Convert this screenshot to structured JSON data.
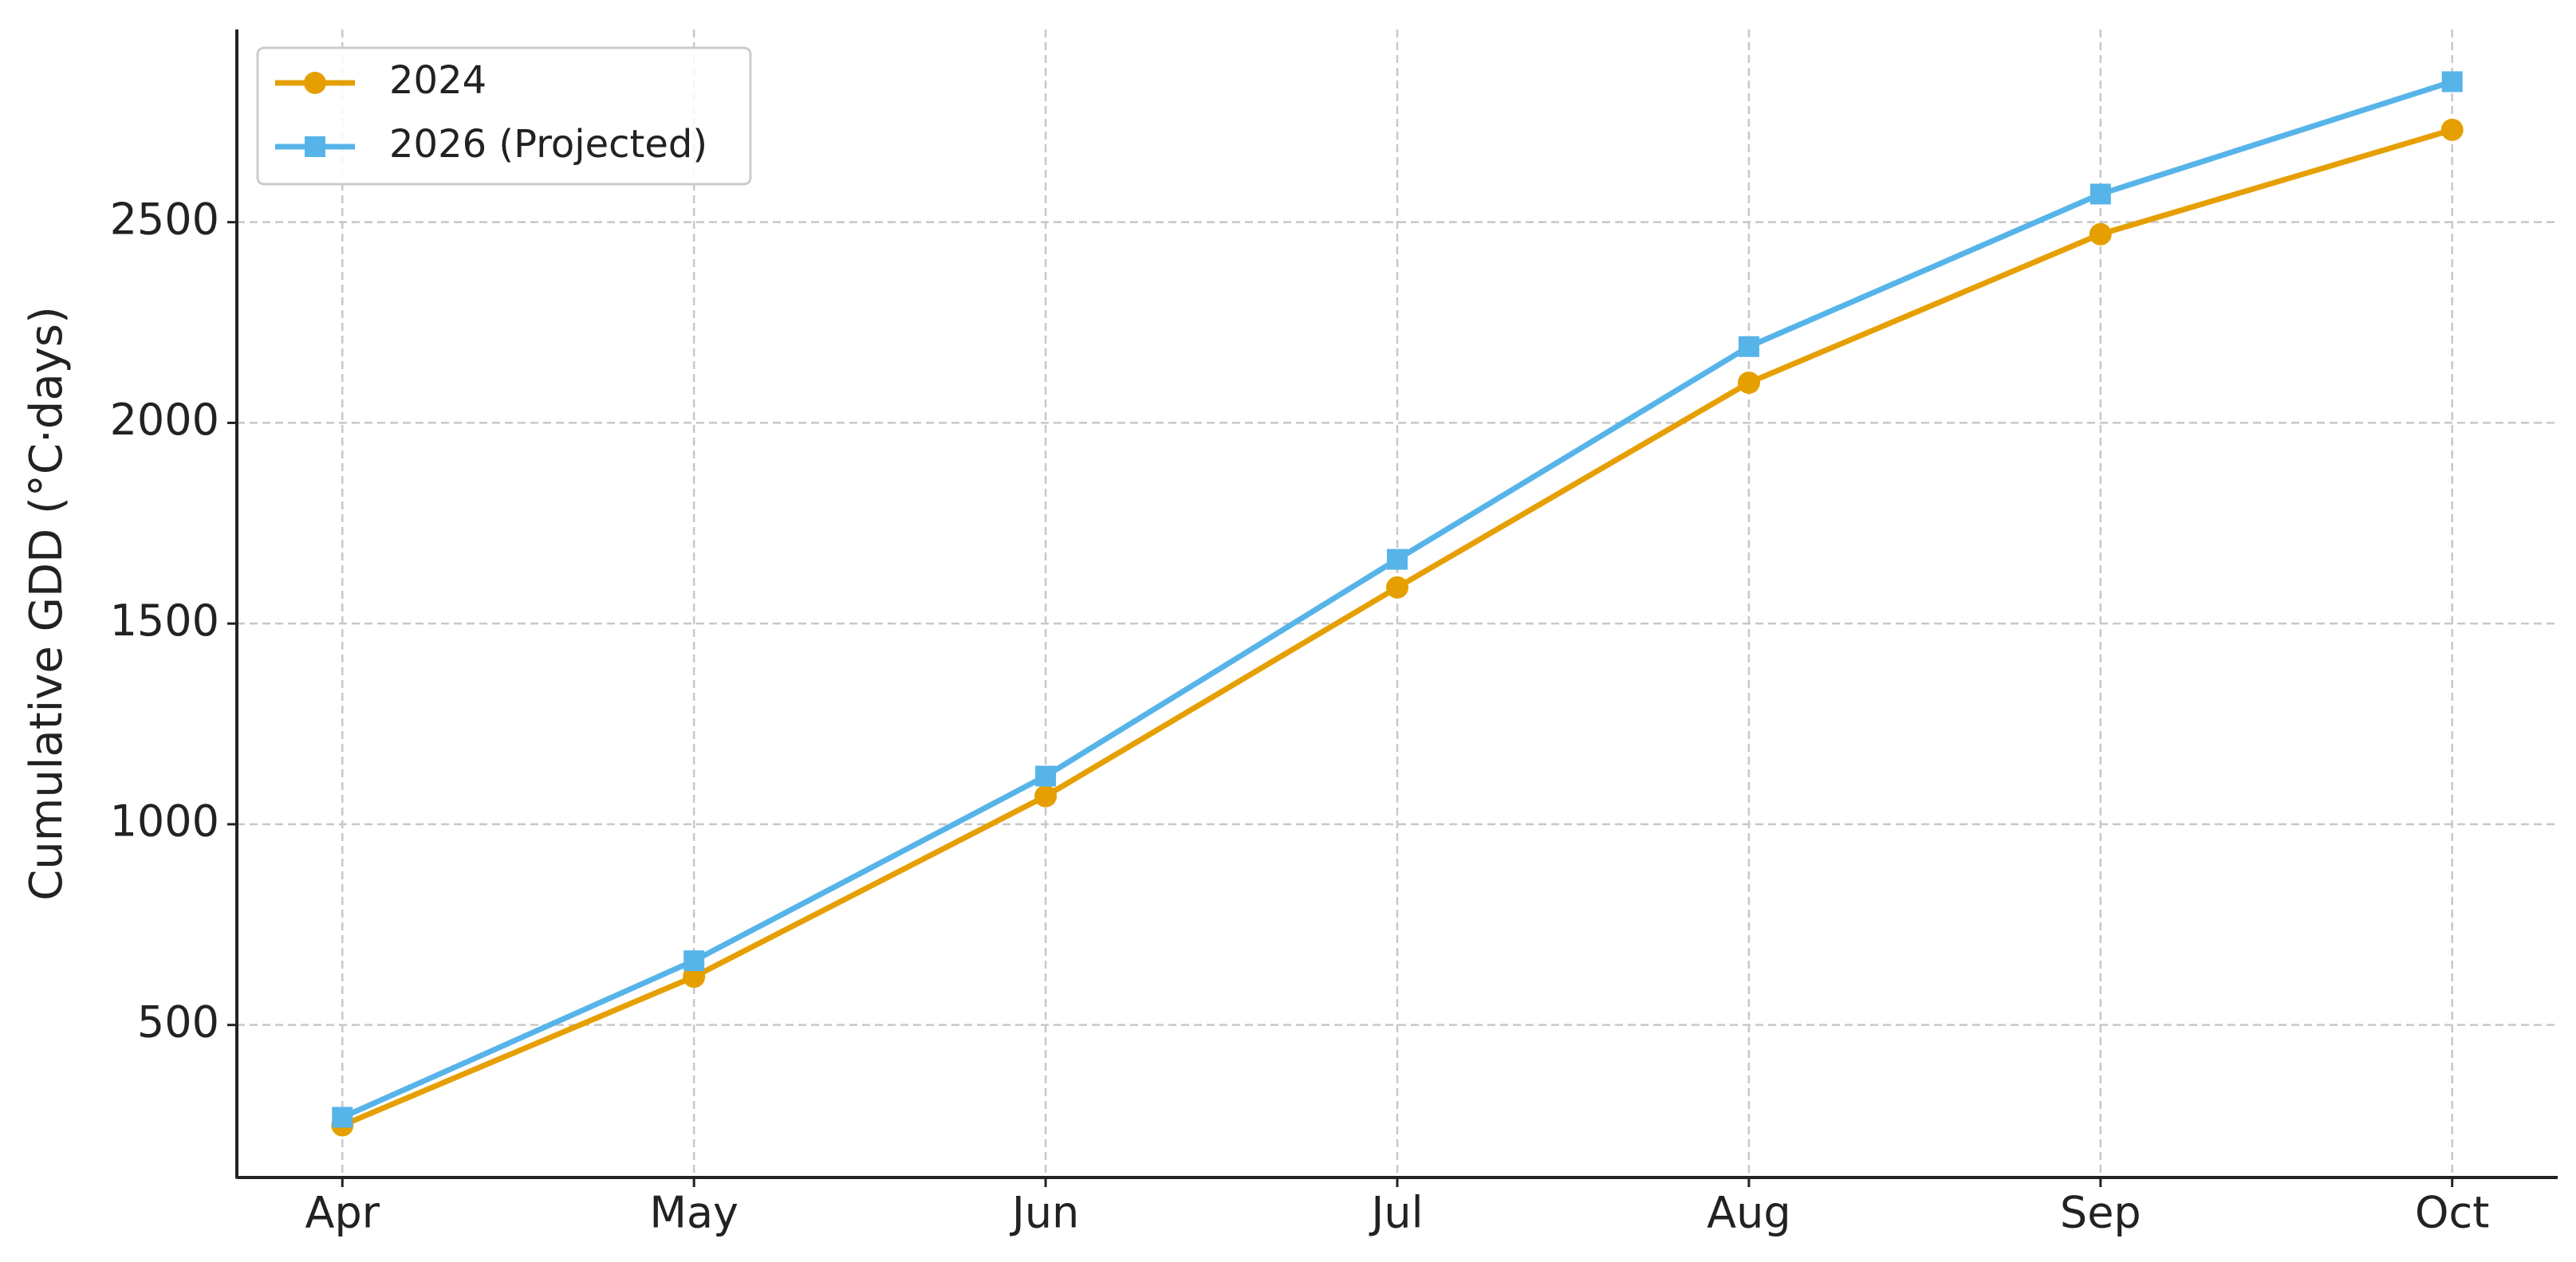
{
  "chart_data": {
    "type": "line",
    "ylabel": "Cumulative GDD (°C·days)",
    "categories": [
      "Apr",
      "May",
      "Jun",
      "Jul",
      "Aug",
      "Sep",
      "Oct"
    ],
    "series": [
      {
        "name": "2024",
        "color": "#E69F00",
        "marker": "circle",
        "values": [
          250,
          620,
          1070,
          1590,
          2100,
          2470,
          2730
        ]
      },
      {
        "name": "2026 (Projected)",
        "color": "#56B4E9",
        "marker": "square",
        "values": [
          270,
          660,
          1120,
          1660,
          2190,
          2570,
          2850
        ]
      }
    ],
    "ylim": [
      120,
      2980
    ],
    "yticks": [
      500,
      1000,
      1500,
      2000,
      2500
    ],
    "grid": true,
    "legend": "upper left"
  }
}
